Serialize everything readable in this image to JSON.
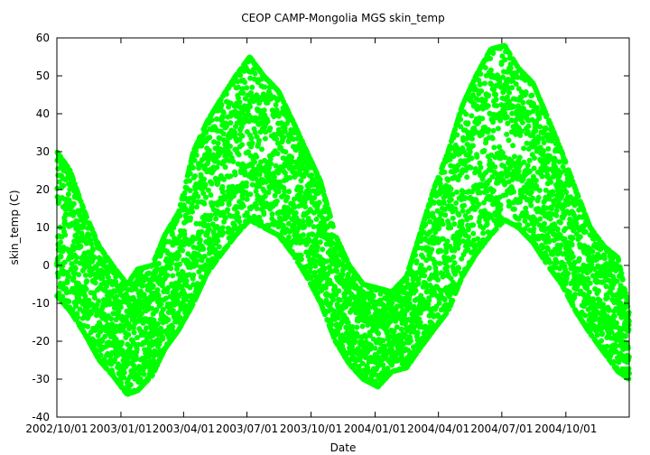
{
  "chart_data": {
    "type": "scatter",
    "title": "CEOP CAMP-Mongolia MGS  skin_temp",
    "xlabel": "Date",
    "ylabel": "skin_temp (C)",
    "ylim": [
      -40,
      60
    ],
    "yticks": [
      -40,
      -30,
      -20,
      -10,
      0,
      10,
      20,
      30,
      40,
      50,
      60
    ],
    "xlim": [
      "2002-10-01",
      "2004-12-31"
    ],
    "xticks": [
      {
        "date": "2002-10-01",
        "label": "2002/10/01"
      },
      {
        "date": "2003-01-01",
        "label": "2003/01/01"
      },
      {
        "date": "2003-04-01",
        "label": "2003/04/01"
      },
      {
        "date": "2003-07-01",
        "label": "2003/07/01"
      },
      {
        "date": "2003-10-01",
        "label": "2003/10/01"
      },
      {
        "date": "2004-01-01",
        "label": "2004/01/01"
      },
      {
        "date": "2004-04-01",
        "label": "2004/04/01"
      },
      {
        "date": "2004-07-01",
        "label": "2004/07/01"
      },
      {
        "date": "2004-10-01",
        "label": "2004/10/01"
      }
    ],
    "grid": false,
    "series": [
      {
        "name": "skin_temp",
        "color": "#00ff00",
        "envelope": [
          {
            "date": "2002-10-01",
            "min": -8,
            "max": 30
          },
          {
            "date": "2002-10-20",
            "min": -12,
            "max": 25
          },
          {
            "date": "2002-11-10",
            "min": -18,
            "max": 14
          },
          {
            "date": "2002-12-01",
            "min": -25,
            "max": 5
          },
          {
            "date": "2002-12-20",
            "min": -29,
            "max": 0
          },
          {
            "date": "2003-01-10",
            "min": -34,
            "max": -5
          },
          {
            "date": "2003-01-25",
            "min": -33,
            "max": -1
          },
          {
            "date": "2003-02-15",
            "min": -29,
            "max": 0
          },
          {
            "date": "2003-03-05",
            "min": -22,
            "max": 8
          },
          {
            "date": "2003-03-25",
            "min": -17,
            "max": 14
          },
          {
            "date": "2003-04-15",
            "min": -10,
            "max": 30
          },
          {
            "date": "2003-05-05",
            "min": -2,
            "max": 38
          },
          {
            "date": "2003-05-25",
            "min": 3,
            "max": 44
          },
          {
            "date": "2003-06-15",
            "min": 8,
            "max": 50
          },
          {
            "date": "2003-07-05",
            "min": 12,
            "max": 55
          },
          {
            "date": "2003-07-25",
            "min": 10,
            "max": 50
          },
          {
            "date": "2003-08-15",
            "min": 8,
            "max": 46
          },
          {
            "date": "2003-09-05",
            "min": 3,
            "max": 38
          },
          {
            "date": "2003-09-25",
            "min": -3,
            "max": 30
          },
          {
            "date": "2003-10-15",
            "min": -10,
            "max": 22
          },
          {
            "date": "2003-11-05",
            "min": -20,
            "max": 8
          },
          {
            "date": "2003-11-25",
            "min": -26,
            "max": 0
          },
          {
            "date": "2003-12-15",
            "min": -30,
            "max": -5
          },
          {
            "date": "2004-01-05",
            "min": -32,
            "max": -6
          },
          {
            "date": "2004-01-25",
            "min": -28,
            "max": -7
          },
          {
            "date": "2004-02-15",
            "min": -27,
            "max": -3
          },
          {
            "date": "2004-03-05",
            "min": -22,
            "max": 8
          },
          {
            "date": "2004-03-25",
            "min": -17,
            "max": 20
          },
          {
            "date": "2004-04-15",
            "min": -12,
            "max": 30
          },
          {
            "date": "2004-05-05",
            "min": -3,
            "max": 42
          },
          {
            "date": "2004-05-25",
            "min": 3,
            "max": 50
          },
          {
            "date": "2004-06-15",
            "min": 8,
            "max": 57
          },
          {
            "date": "2004-07-05",
            "min": 12,
            "max": 58
          },
          {
            "date": "2004-07-25",
            "min": 10,
            "max": 52
          },
          {
            "date": "2004-08-15",
            "min": 6,
            "max": 48
          },
          {
            "date": "2004-09-05",
            "min": 0,
            "max": 39
          },
          {
            "date": "2004-09-25",
            "min": -5,
            "max": 30
          },
          {
            "date": "2004-10-15",
            "min": -12,
            "max": 20
          },
          {
            "date": "2004-11-05",
            "min": -18,
            "max": 10
          },
          {
            "date": "2004-11-25",
            "min": -23,
            "max": 5
          },
          {
            "date": "2004-12-15",
            "min": -28,
            "max": 2
          },
          {
            "date": "2004-12-31",
            "min": -30,
            "max": -12
          }
        ]
      }
    ]
  }
}
